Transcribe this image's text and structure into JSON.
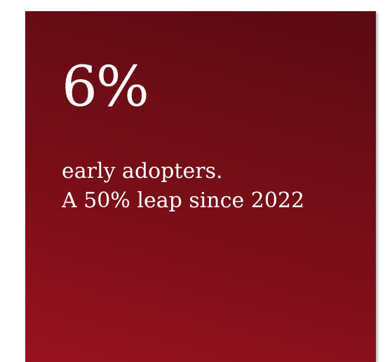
{
  "card": {
    "value": "6%",
    "caption_lines": [
      "early adopters.",
      "A 50% leap since 2022"
    ],
    "colors": {
      "gradient_top": "#5a0a13",
      "gradient_bottom": "#98121f",
      "text": "#ffffff",
      "page_background": "#ffffff"
    }
  }
}
